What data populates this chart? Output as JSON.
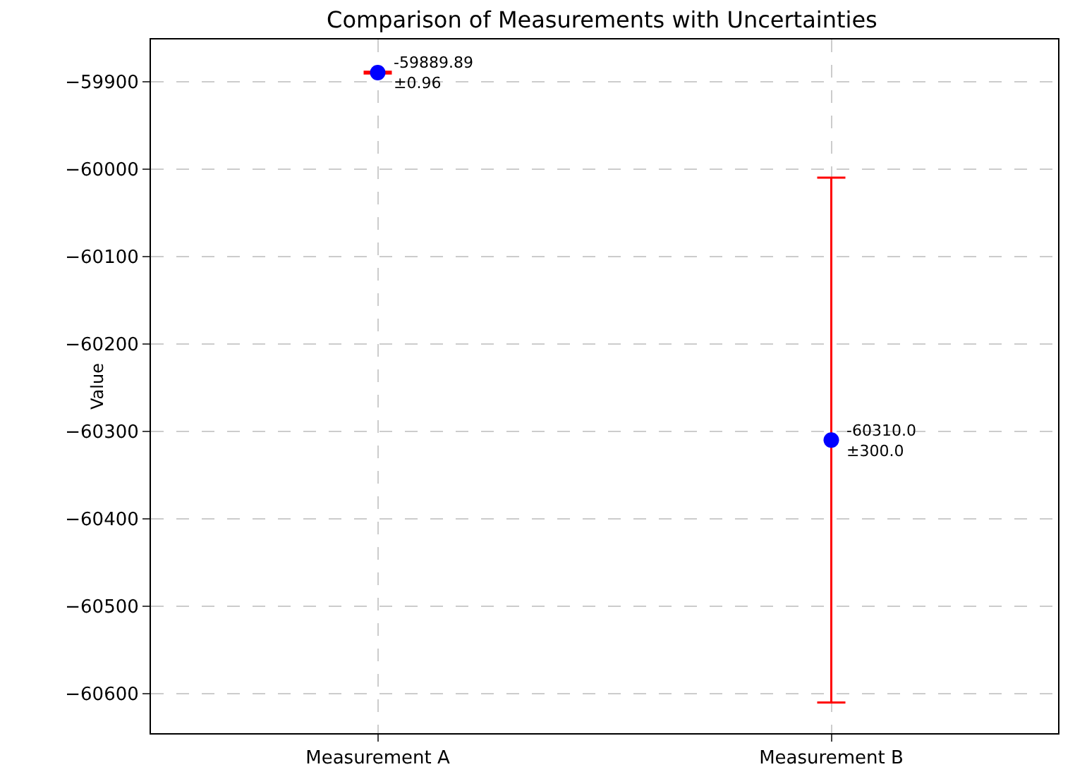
{
  "chart_data": {
    "type": "scatter",
    "title": "Comparison of Measurements with Uncertainties",
    "ylabel": "Value",
    "categories": [
      "Measurement A",
      "Measurement B"
    ],
    "series": [
      {
        "color": "#0000ff",
        "values": [
          -59889.89,
          -60310.0
        ],
        "errors": [
          0.96,
          300.0
        ],
        "value_labels": [
          "-59889.89\n±0.96",
          "-60310.0\n±300.0"
        ]
      }
    ],
    "ylim": [
      -60645,
      -59852
    ],
    "yticks": [
      {
        "value": -60600,
        "label": "−60600"
      },
      {
        "value": -60500,
        "label": "−60500"
      },
      {
        "value": -60400,
        "label": "−60400"
      },
      {
        "value": -60300,
        "label": "−60300"
      },
      {
        "value": -60200,
        "label": "−60200"
      },
      {
        "value": -60100,
        "label": "−60100"
      },
      {
        "value": -60000,
        "label": "−60000"
      },
      {
        "value": -59900,
        "label": "−59900"
      }
    ],
    "grid": true,
    "marker": "circle"
  }
}
